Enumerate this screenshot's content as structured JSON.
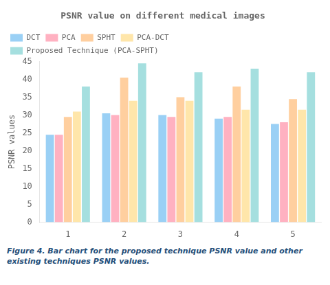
{
  "chart_data": {
    "type": "bar",
    "title": "PSNR value on different medical images",
    "ylabel": "PSNR values",
    "categories": [
      1,
      2,
      3,
      4,
      5
    ],
    "series": [
      {
        "name": "DCT",
        "values": [
          24.5,
          30.5,
          30.0,
          29.0,
          27.5
        ]
      },
      {
        "name": "PCA",
        "values": [
          24.5,
          30.0,
          29.5,
          29.5,
          28.0
        ]
      },
      {
        "name": "SPHT",
        "values": [
          29.5,
          40.5,
          35.0,
          38.0,
          34.5
        ]
      },
      {
        "name": "PCA-DCT",
        "values": [
          31.0,
          34.0,
          34.0,
          31.5,
          31.5
        ]
      },
      {
        "name": "Proposed Technique (PCA-SPHT)",
        "values": [
          38.0,
          44.5,
          42.0,
          43.0,
          42.0
        ]
      }
    ],
    "ylim": [
      0,
      45
    ],
    "yticks": [
      0,
      5,
      10,
      15,
      20,
      25,
      30,
      35,
      40,
      45
    ],
    "grid": false,
    "legend": "upper left",
    "caption": [
      "Figure 4.  Bar chart for the proposed technique PSNR value and other",
      "existing techniques PSNR values."
    ]
  }
}
